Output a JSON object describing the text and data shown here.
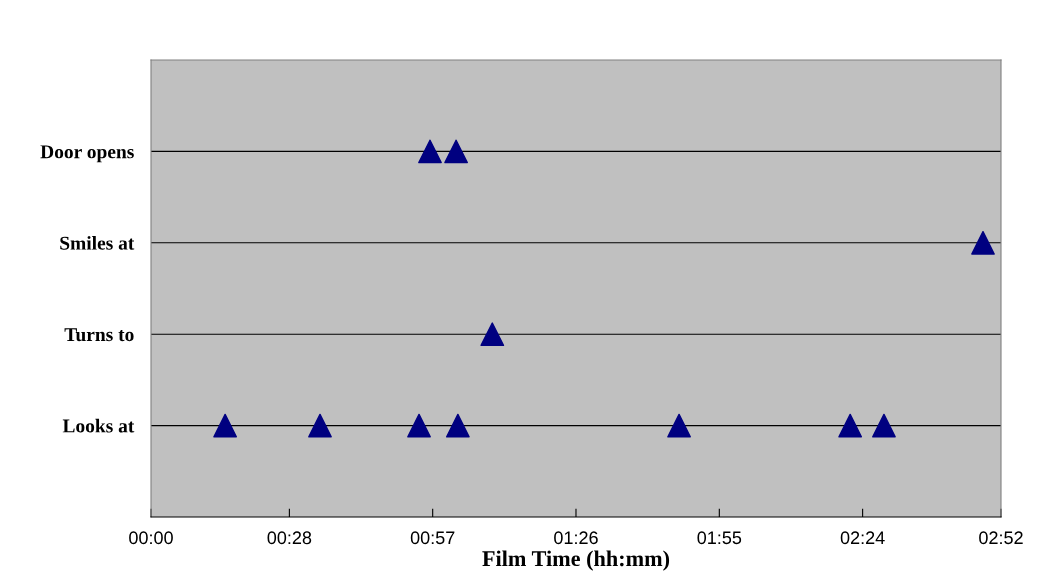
{
  "chart_data": {
    "type": "scatter",
    "orientation": "horizontal",
    "xlabel": "Film Time (hh:mm)",
    "xlim": [
      0,
      2.8667
    ],
    "xticks": [
      {
        "value": 0,
        "label": "00:00"
      },
      {
        "value": 0.4667,
        "label": "00:28"
      },
      {
        "value": 0.95,
        "label": "00:57"
      },
      {
        "value": 1.4333,
        "label": "01:26"
      },
      {
        "value": 1.9167,
        "label": "01:55"
      },
      {
        "value": 2.4,
        "label": "02:24"
      },
      {
        "value": 2.8667,
        "label": "02:52"
      }
    ],
    "categories": [
      "Door opens",
      "Smiles at",
      "Turns to",
      "Looks at"
    ],
    "grid": "y",
    "marker": "triangle",
    "series": [
      {
        "color": "#000080",
        "x": [
          "Looks at",
          "Looks at",
          "Looks at",
          "Looks at",
          "Looks at",
          "Looks at",
          "Looks at",
          "Turns to",
          "Smiles at",
          "Door opens",
          "Door opens"
        ],
        "values": [
          0.25,
          0.57,
          0.904,
          1.035,
          1.781,
          2.358,
          2.472,
          1.151,
          2.806,
          0.941,
          1.029
        ]
      }
    ]
  }
}
